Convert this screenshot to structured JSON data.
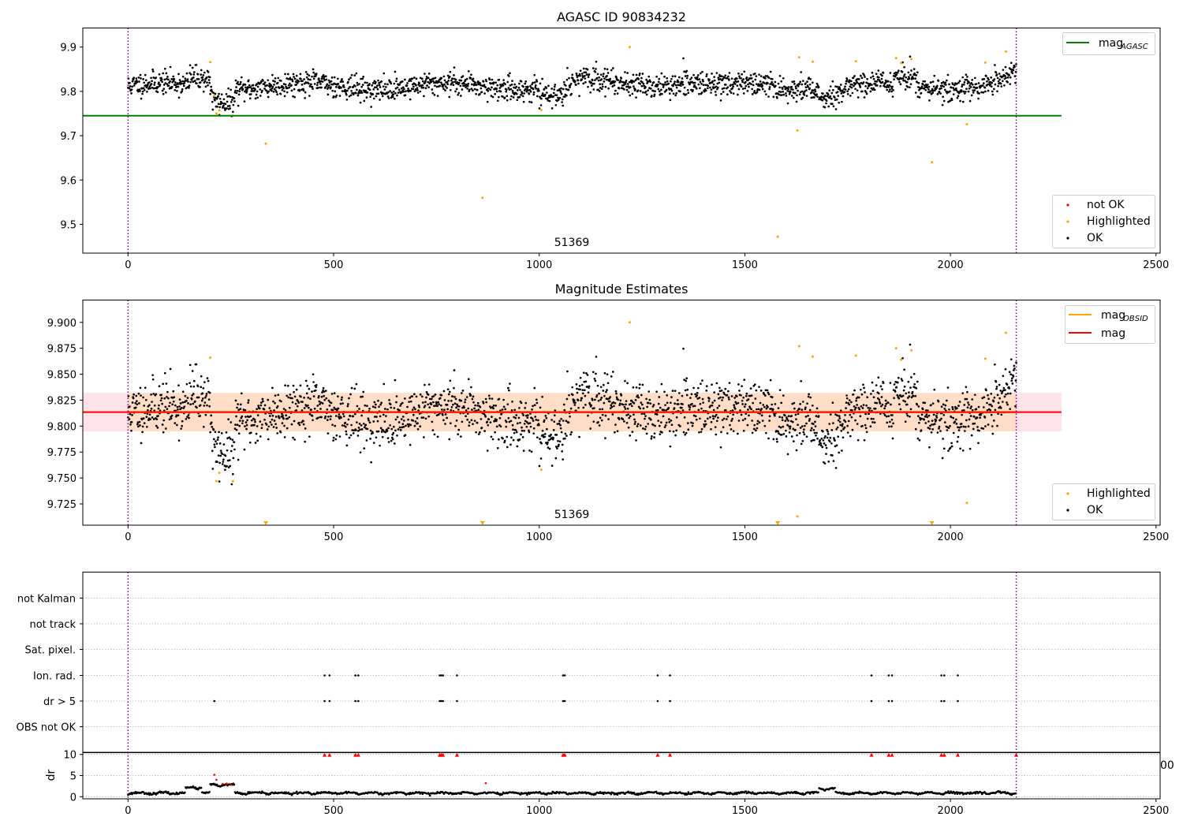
{
  "figure": {
    "colors": {
      "ok": "#000000",
      "highlighted": "#ffa500",
      "not_ok": "#ff0000",
      "mag_agasc": "#008000",
      "mag_obsid": "#ffa500",
      "mag": "#ff0000",
      "obsid_marker": "#800080",
      "band_outer": "#ffc0cb",
      "band_inner": "#ffdab9",
      "grid": "#b0b0b0"
    }
  },
  "chart_data": [
    {
      "type": "scatter",
      "title": "AGASC ID 90834232",
      "xlabel": "",
      "ylabel": "",
      "xlim": [
        -110,
        2510
      ],
      "ylim": [
        9.435,
        9.943
      ],
      "xticks": [
        "0",
        "500",
        "1000",
        "1500",
        "2000",
        "2500"
      ],
      "yticks": [
        "9.5",
        "9.6",
        "9.7",
        "9.8",
        "9.9"
      ],
      "obsid_bounds": [
        0,
        2160
      ],
      "obsid_label": "51369",
      "obsid_label_x": 1080,
      "hlines": [
        {
          "name": "mag",
          "sub": "AGASC",
          "y": 9.745,
          "x_range": [
            -110,
            2270
          ]
        }
      ],
      "legend_top": [
        {
          "label": "mag",
          "sub": "AGASC",
          "kind": "line",
          "color_key": "mag_agasc"
        }
      ],
      "legend_bottom": [
        {
          "label": "not OK",
          "kind": "dot",
          "color_key": "not_ok"
        },
        {
          "label": "Highlighted",
          "kind": "dot",
          "color_key": "highlighted"
        },
        {
          "label": "OK",
          "kind": "dot",
          "color_key": "ok"
        }
      ],
      "ok_series": {
        "name": "OK",
        "x_range": [
          0,
          2160
        ],
        "count": 2160,
        "seed": 11
      },
      "highlighted_points": [
        [
          200,
          9.866
        ],
        [
          210,
          9.79
        ],
        [
          215,
          9.75
        ],
        [
          222,
          9.757
        ],
        [
          255,
          9.745
        ],
        [
          335,
          9.682
        ],
        [
          862,
          9.56
        ],
        [
          1005,
          9.758
        ],
        [
          1220,
          9.9
        ],
        [
          1580,
          9.472
        ],
        [
          1628,
          9.712
        ],
        [
          1632,
          9.877
        ],
        [
          1665,
          9.867
        ],
        [
          1770,
          9.868
        ],
        [
          1868,
          9.875
        ],
        [
          1880,
          9.864
        ],
        [
          1905,
          9.873
        ],
        [
          1955,
          9.64
        ],
        [
          2040,
          9.726
        ],
        [
          2085,
          9.865
        ],
        [
          2135,
          9.89
        ]
      ]
    },
    {
      "type": "scatter",
      "title": "Magnitude Estimates",
      "xlabel": "",
      "ylabel": "",
      "xlim": [
        -110,
        2510
      ],
      "ylim": [
        9.7045,
        9.9215
      ],
      "xticks": [
        "0",
        "500",
        "1000",
        "1500",
        "2000",
        "2500"
      ],
      "yticks": [
        "9.725",
        "9.750",
        "9.775",
        "9.800",
        "9.825",
        "9.850",
        "9.875",
        "9.900"
      ],
      "obsid_bounds": [
        0,
        2160
      ],
      "obsid_label": "51369",
      "obsid_label_x": 1080,
      "mag": 9.8135,
      "band_outer": [
        9.795,
        9.832
      ],
      "band_inner": [
        9.795,
        9.832
      ],
      "band_x_range": [
        -110,
        2270
      ],
      "hlines": [
        {
          "name": "mag",
          "sub": "OBSID",
          "y": 9.8135,
          "x_range": [
            0,
            2160
          ],
          "color_key": "mag_obsid"
        },
        {
          "name": "mag",
          "y": 9.8135,
          "x_range": [
            -110,
            2270
          ],
          "color_key": "mag"
        }
      ],
      "legend_top": [
        {
          "label": "mag",
          "sub": "OBSID",
          "kind": "line",
          "color_key": "mag_obsid"
        },
        {
          "label": "mag",
          "kind": "line",
          "color_key": "mag"
        }
      ],
      "legend_bottom": [
        {
          "label": "Highlighted",
          "kind": "dot",
          "color_key": "highlighted"
        },
        {
          "label": "OK",
          "kind": "dot",
          "color_key": "ok"
        }
      ],
      "ok_series": {
        "name": "OK",
        "x_range": [
          0,
          2160
        ],
        "count": 2160,
        "seed": 11
      },
      "highlighted_points": [
        [
          200,
          9.866
        ],
        [
          215,
          9.747
        ],
        [
          222,
          9.755
        ],
        [
          255,
          9.747
        ],
        [
          1005,
          9.758
        ],
        [
          1220,
          9.9
        ],
        [
          1628,
          9.713
        ],
        [
          1632,
          9.877
        ],
        [
          1665,
          9.867
        ],
        [
          1770,
          9.868
        ],
        [
          1868,
          9.875
        ],
        [
          1880,
          9.864
        ],
        [
          1905,
          9.873
        ],
        [
          2040,
          9.726
        ],
        [
          2085,
          9.865
        ],
        [
          2135,
          9.89
        ]
      ],
      "offscale_low_x": [
        335,
        862,
        1580,
        1955
      ]
    },
    {
      "type": "scatter",
      "title": "",
      "xlabel": "",
      "ylabel": "",
      "xlim": [
        -110,
        2510
      ],
      "categories": [
        "not Kalman",
        "not track",
        "Sat. pixel.",
        "Ion. rad.",
        "dr > 5",
        "OBS not OK"
      ],
      "obsid_bounds": [
        0,
        2160
      ],
      "flags": {
        "Ion. rad.": [
          478,
          490,
          553,
          560,
          758,
          762,
          766,
          800,
          1058,
          1062,
          1288,
          1318,
          1808,
          1850,
          1858,
          1978,
          1985,
          2018
        ],
        "dr > 5": [
          210,
          478,
          490,
          553,
          560,
          758,
          762,
          766,
          800,
          1058,
          1062,
          1288,
          1318,
          1808,
          1850,
          1858,
          1978,
          1985,
          2018
        ]
      }
    },
    {
      "type": "scatter",
      "title": "",
      "xlabel": "",
      "ylabel": "dr",
      "xlim": [
        -110,
        2510
      ],
      "ylim": [
        -0.5,
        10.5
      ],
      "xticks": [
        "0",
        "500",
        "1000",
        "1500",
        "2000",
        "2500"
      ],
      "yticks": [
        "0",
        "5",
        "10"
      ],
      "obsid_bounds": [
        0,
        2160
      ],
      "dr_series": {
        "x_range": [
          0,
          2160
        ],
        "count": 2160,
        "seed": 23
      },
      "dr_high_points": [
        [
          210,
          5.2
        ],
        [
          215,
          4.0
        ],
        [
          230,
          3.0
        ],
        [
          240,
          3.1
        ],
        [
          250,
          2.8
        ],
        [
          870,
          3.2
        ]
      ],
      "clipped_x": [
        478,
        490,
        553,
        560,
        758,
        762,
        766,
        800,
        1058,
        1062,
        1288,
        1318,
        1808,
        1850,
        1858,
        1978,
        1985,
        2018,
        2160
      ],
      "clipped_value": 10
    }
  ]
}
